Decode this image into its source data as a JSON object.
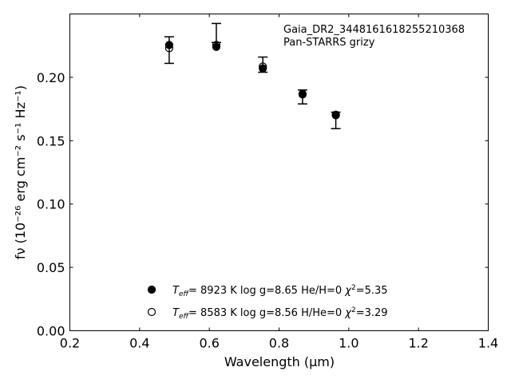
{
  "chart_data": {
    "type": "scatter",
    "xlabel": "Wavelength (μm)",
    "ylabel": "fν (10⁻²⁶ erg cm⁻² s⁻¹ Hz⁻¹)",
    "xlim": [
      0.2,
      1.4
    ],
    "ylim": [
      0.0,
      0.25
    ],
    "x_ticks": [
      0.2,
      0.4,
      0.6,
      0.8,
      1.0,
      1.2,
      1.4
    ],
    "x_tick_labels": [
      "0.2",
      "0.4",
      "0.6",
      "0.8",
      "1.0",
      "1.2",
      "1.4"
    ],
    "y_ticks": [
      0.0,
      0.05,
      0.1,
      0.15,
      0.2
    ],
    "y_tick_labels": [
      "0.00",
      "0.05",
      "0.10",
      "0.15",
      "0.20"
    ],
    "grid": false,
    "annotation": {
      "line1": "Gaia_DR2_3448161618255210368",
      "line2": "Pan-STARRS grizy"
    },
    "observed": {
      "x": [
        0.4849,
        0.6201,
        0.7535,
        0.8674,
        0.9628
      ],
      "y": [
        0.2215,
        0.235,
        0.21,
        0.1845,
        0.166
      ],
      "yerr": [
        0.0105,
        0.0075,
        0.006,
        0.0055,
        0.0065
      ]
    },
    "series": [
      {
        "marker": "filled",
        "x": [
          0.4849,
          0.6201,
          0.7535,
          0.8674,
          0.9628
        ],
        "y": [
          0.2255,
          0.224,
          0.207,
          0.1865,
          0.17
        ]
      },
      {
        "marker": "open",
        "x": [
          0.4849,
          0.6201,
          0.7535,
          0.8674,
          0.9628
        ],
        "y": [
          0.223,
          0.2255,
          0.2085,
          0.187,
          0.1705
        ]
      }
    ],
    "legend": {
      "placement": "lower-center",
      "entries": [
        {
          "marker": "filled",
          "teff_sym": "T",
          "teff_sub": "eff",
          "text_a": "=  8923 K  log g=8.65  He/H=0  ",
          "chi_sym": "χ",
          "chi_sup": "2",
          "text_b": "=5.35"
        },
        {
          "marker": "open",
          "teff_sym": "T",
          "teff_sub": "eff",
          "text_a": "=  8583 K  log g=8.56  H/He=0  ",
          "chi_sym": "χ",
          "chi_sup": "2",
          "text_b": "=3.29"
        }
      ]
    }
  }
}
